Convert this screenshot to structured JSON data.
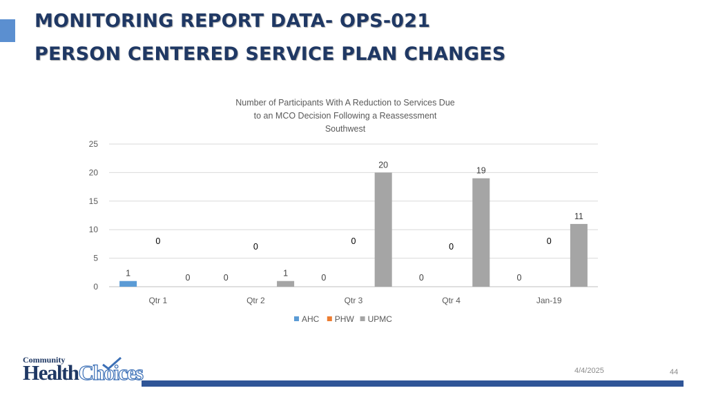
{
  "slide": {
    "title_line1": "MONITORING REPORT DATA- OPS-021",
    "title_line2": "PERSON CENTERED SERVICE PLAN CHANGES",
    "date": "4/4/2025",
    "page_number": "44"
  },
  "logo": {
    "top_word": "Community",
    "word1": "Health",
    "word2": "Choices"
  },
  "colors": {
    "title": "#1f3864",
    "accent": "#5b8fd0",
    "footer_bar": "#2f5597"
  },
  "chart_data": {
    "type": "bar",
    "title_lines": [
      "Number of Participants With A Reduction to Services Due",
      "to an MCO Decision Following a Reassessment",
      "Southwest"
    ],
    "categories": [
      "Qtr 1",
      "Qtr 2",
      "Qtr 3",
      "Qtr 4",
      "Jan-19"
    ],
    "series": [
      {
        "name": "AHC",
        "color": "#5b9bd5",
        "values": [
          1,
          0,
          0,
          0,
          0
        ],
        "labels": [
          "1",
          "0",
          "0",
          "0",
          "0"
        ]
      },
      {
        "name": "PHW",
        "color": "#ed7d31",
        "values": [
          0,
          0,
          0,
          0,
          0
        ],
        "labels": [
          "0",
          "0",
          "0",
          "0",
          "0"
        ]
      },
      {
        "name": "UPMC",
        "color": "#a5a5a5",
        "values": [
          0,
          1,
          20,
          19,
          11
        ],
        "labels": [
          "0",
          "1",
          "20",
          "19",
          "11"
        ]
      }
    ],
    "ylim": [
      0,
      25
    ],
    "yticks": [
      0,
      5,
      10,
      15,
      20,
      25
    ],
    "grid": true,
    "legend_position": "bottom"
  }
}
